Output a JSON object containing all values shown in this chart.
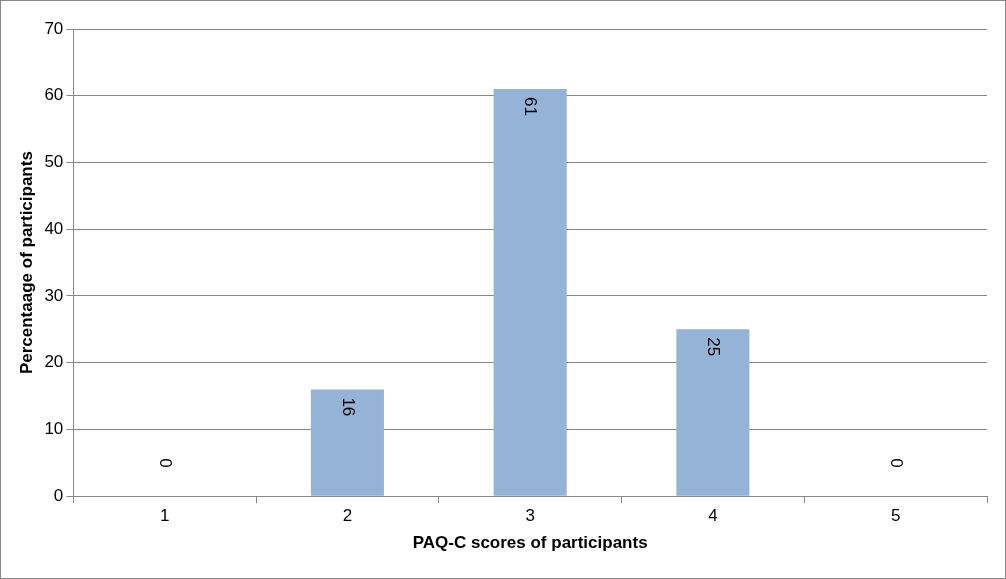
{
  "chart_data": {
    "type": "bar",
    "xlabel": "PAQ-C scores of participants",
    "ylabel": "Percentaage of participants",
    "categories": [
      "1",
      "2",
      "3",
      "4",
      "5"
    ],
    "values": [
      0,
      16,
      61,
      25,
      0
    ],
    "color": "#95b3d7",
    "ylim": [
      0,
      70
    ],
    "yticks": [
      0,
      10,
      20,
      30,
      40,
      50,
      60,
      70
    ],
    "grid": "y",
    "data_labels": true
  }
}
